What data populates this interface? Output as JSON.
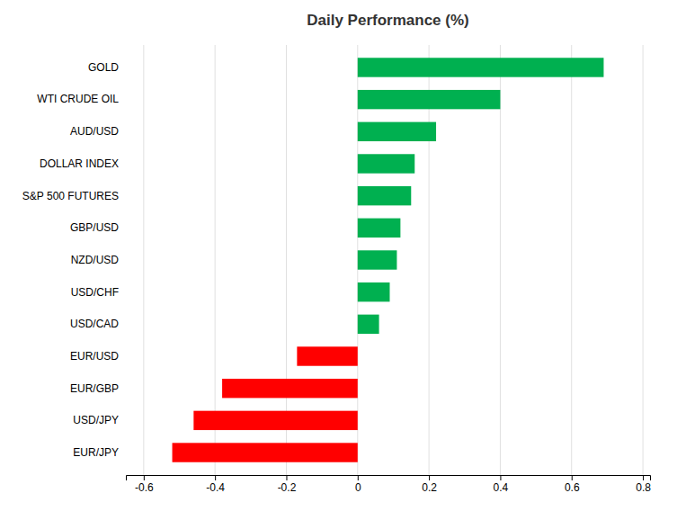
{
  "chart_data": {
    "type": "bar",
    "orientation": "horizontal",
    "title": "Daily Performance (%)",
    "categories": [
      "EUR/JPY",
      "USD/JPY",
      "EUR/GBP",
      "EUR/USD",
      "USD/CAD",
      "USD/CHF",
      "NZD/USD",
      "GBP/USD",
      "S&P 500 FUTURES",
      "DOLLAR INDEX",
      "AUD/USD",
      "WTI CRUDE OIL",
      "GOLD"
    ],
    "values": [
      -0.52,
      -0.46,
      -0.38,
      -0.17,
      0.06,
      0.09,
      0.11,
      0.12,
      0.15,
      0.16,
      0.22,
      0.4,
      0.69
    ],
    "colors": [
      "#ff0000",
      "#ff0000",
      "#ff0000",
      "#ff0000",
      "#00b050",
      "#00b050",
      "#00b050",
      "#00b050",
      "#00b050",
      "#00b050",
      "#00b050",
      "#00b050",
      "#00b050"
    ],
    "xlim": [
      -0.65,
      0.82
    ],
    "xticks": [
      -0.6,
      -0.4,
      -0.2,
      0,
      0.2,
      0.4,
      0.6,
      0.8
    ],
    "grid": true
  }
}
